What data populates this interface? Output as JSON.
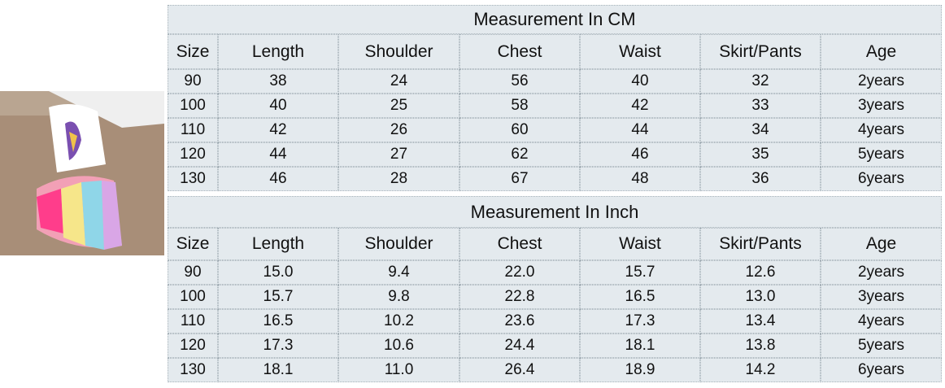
{
  "tables": [
    {
      "title": "Measurement In CM",
      "headers": [
        "Size",
        "Length",
        "Shoulder",
        "Chest",
        "Waist",
        "Skirt/Pants",
        "Age"
      ],
      "rows": [
        [
          "90",
          "38",
          "24",
          "56",
          "40",
          "32",
          "2years"
        ],
        [
          "100",
          "40",
          "25",
          "58",
          "42",
          "33",
          "3years"
        ],
        [
          "110",
          "42",
          "26",
          "60",
          "44",
          "34",
          "4years"
        ],
        [
          "120",
          "44",
          "27",
          "62",
          "46",
          "35",
          "5years"
        ],
        [
          "130",
          "46",
          "28",
          "67",
          "48",
          "36",
          "6years"
        ]
      ]
    },
    {
      "title": "Measurement In Inch",
      "headers": [
        "Size",
        "Length",
        "Shoulder",
        "Chest",
        "Waist",
        "Skirt/Pants",
        "Age"
      ],
      "rows": [
        [
          "90",
          "15.0",
          "9.4",
          "22.0",
          "15.7",
          "12.6",
          "2years"
        ],
        [
          "100",
          "15.7",
          "9.8",
          "22.8",
          "16.5",
          "13.0",
          "3years"
        ],
        [
          "110",
          "16.5",
          "10.2",
          "23.6",
          "17.3",
          "13.4",
          "4years"
        ],
        [
          "120",
          "17.3",
          "10.6",
          "24.4",
          "18.1",
          "13.8",
          "5years"
        ],
        [
          "130",
          "18.1",
          "11.0",
          "26.4",
          "18.9",
          "14.2",
          "6years"
        ]
      ]
    }
  ]
}
